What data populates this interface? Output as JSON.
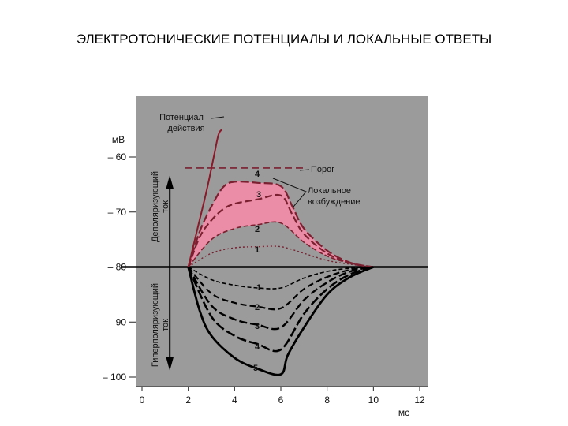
{
  "slide": {
    "title": "ЭЛЕКТРОТОНИЧЕСКИЕ ПОТЕНЦИАЛЫ И ЛОКАЛЬНЫЕ ОТВЕТЫ"
  },
  "chart_data": {
    "type": "line",
    "title": "",
    "xlabel": "мс",
    "ylabel": "мВ",
    "xlim": [
      0,
      12
    ],
    "ylim": [
      -100,
      -55
    ],
    "x_ticks": [
      0,
      2,
      4,
      6,
      8,
      10,
      12
    ],
    "y_ticks": [
      -60,
      -70,
      -80,
      -90,
      -100
    ],
    "grid": false,
    "background": "#9b9b9b",
    "baseline": -80,
    "threshold": -62,
    "annotations": {
      "action_potential": "Потенциал действия",
      "threshold": "Порог",
      "local_response": "Локальное возбуждение",
      "depolarizing": "Деполяризующий ток",
      "hyperpolarizing": "Гиперполяризующий ток"
    },
    "series": [
      {
        "label": "1",
        "group": "depolarizing",
        "x": [
          2,
          3,
          4,
          5,
          6,
          7,
          8,
          9,
          10
        ],
        "y": [
          -80,
          -77.5,
          -76.5,
          -76.3,
          -76.3,
          -77.5,
          -78.8,
          -79.5,
          -80
        ]
      },
      {
        "label": "2",
        "group": "depolarizing",
        "x": [
          2,
          3,
          4,
          5,
          6,
          7,
          8,
          9,
          10
        ],
        "y": [
          -80,
          -75,
          -73,
          -72.3,
          -72,
          -75.5,
          -78,
          -79.3,
          -80
        ]
      },
      {
        "label": "3",
        "group": "depolarizing",
        "x": [
          2,
          2.5,
          3,
          3.5,
          4,
          5,
          6,
          6.5,
          7,
          8,
          9,
          10
        ],
        "y": [
          -80,
          -74.5,
          -71.5,
          -69.5,
          -68.5,
          -67.7,
          -67,
          -70.5,
          -74,
          -77.5,
          -79.3,
          -80
        ]
      },
      {
        "label": "4",
        "group": "depolarizing",
        "x": [
          2,
          2.5,
          3,
          3.5,
          4,
          5,
          6,
          6.5,
          7,
          8,
          9,
          10
        ],
        "y": [
          -80,
          -73.5,
          -69,
          -65.5,
          -64.5,
          -64.7,
          -65.3,
          -69,
          -73,
          -77,
          -79.2,
          -80
        ]
      },
      {
        "label": "Потенциал действия",
        "group": "action_potential",
        "x": [
          2,
          2.4,
          2.8,
          3.1,
          3.3,
          3.45
        ],
        "y": [
          -80,
          -73,
          -66,
          -60,
          -56,
          -55
        ]
      },
      {
        "label": "1",
        "group": "hyperpolarizing",
        "x": [
          2,
          3,
          4,
          5,
          6,
          7,
          8,
          9,
          10
        ],
        "y": [
          -80,
          -82.3,
          -83.3,
          -83.8,
          -83.8,
          -82,
          -80.8,
          -80.2,
          -80
        ]
      },
      {
        "label": "2",
        "group": "hyperpolarizing",
        "x": [
          2,
          3,
          4,
          5,
          6,
          7,
          8,
          9,
          10
        ],
        "y": [
          -80,
          -84.8,
          -86.5,
          -87.2,
          -87.5,
          -84,
          -81.8,
          -80.5,
          -80
        ]
      },
      {
        "label": "3",
        "group": "hyperpolarizing",
        "x": [
          2,
          3,
          4,
          5,
          6,
          7,
          8,
          9,
          10
        ],
        "y": [
          -80,
          -87,
          -89.5,
          -90.5,
          -91,
          -86,
          -82.8,
          -80.8,
          -80
        ]
      },
      {
        "label": "4",
        "group": "hyperpolarizing",
        "x": [
          2,
          3,
          4,
          5,
          6,
          7,
          8,
          9,
          10
        ],
        "y": [
          -80,
          -89,
          -92.5,
          -94,
          -95,
          -88.5,
          -84,
          -81.3,
          -80
        ]
      },
      {
        "label": "5",
        "group": "hyperpolarizing",
        "x": [
          2,
          2.5,
          3,
          4,
          5,
          6,
          6.3,
          7,
          8,
          9,
          10
        ],
        "y": [
          -80,
          -88,
          -92.5,
          -96.5,
          -98.5,
          -99.5,
          -96,
          -91,
          -85,
          -81.8,
          -80
        ]
      }
    ]
  }
}
